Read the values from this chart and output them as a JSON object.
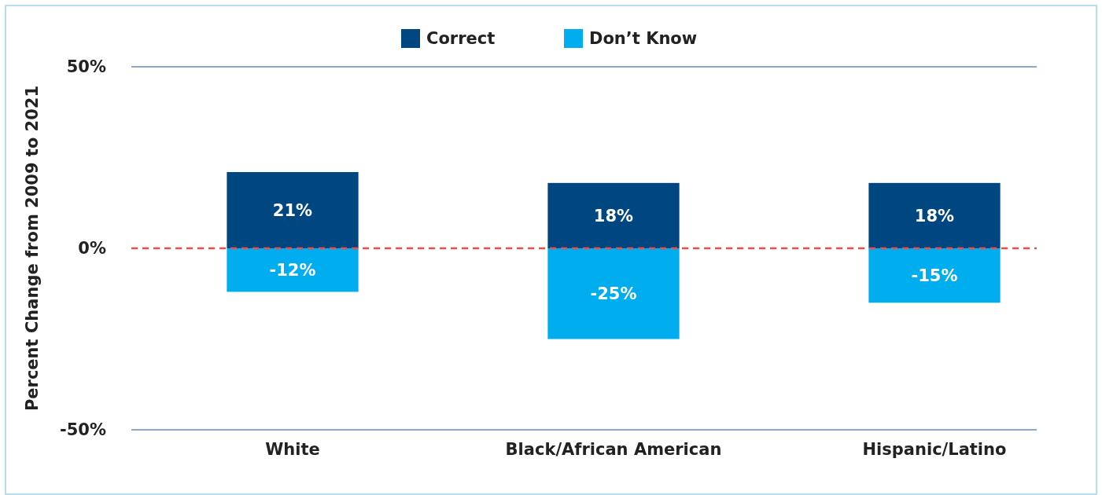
{
  "chart_data": {
    "type": "bar",
    "ylabel": "Percent Change from 2009 to 2021",
    "categories": [
      "White",
      "Black/African American",
      "Hispanic/Latino"
    ],
    "series": [
      {
        "name": "Correct",
        "color": "#004680",
        "values": [
          21,
          18,
          18
        ],
        "value_labels": [
          "21%",
          "18%",
          "18%"
        ]
      },
      {
        "name": "Don’t Know",
        "color": "#00aeef",
        "values": [
          -12,
          -25,
          -15
        ],
        "value_labels": [
          "-12%",
          "-25%",
          "-15%"
        ]
      }
    ],
    "stacked": true,
    "ylim": [
      -50,
      50
    ],
    "yticks": [
      {
        "value": -50,
        "label": "-50%"
      },
      {
        "value": 0,
        "label": "0%"
      },
      {
        "value": 50,
        "label": "50%"
      }
    ],
    "legend": "top",
    "ref_lines": [
      {
        "axis": "y",
        "value": 0,
        "color": "#f04e45",
        "line_style": "dashed"
      }
    ]
  }
}
